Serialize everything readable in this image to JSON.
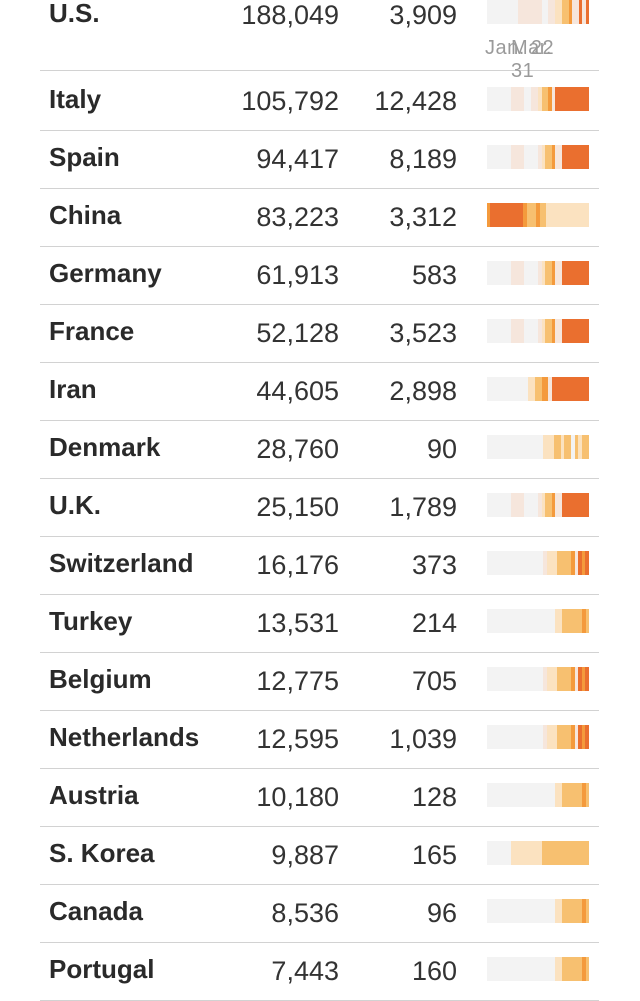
{
  "table": {
    "timeline_label_start": "Jan. 22",
    "timeline_label_end": "Mar. 31",
    "rows": [
      {
        "country": "U.S.",
        "cases": "188,049",
        "deaths": "3,909",
        "trend": "late"
      },
      {
        "country": "Italy",
        "cases": "105,792",
        "deaths": "12,428",
        "trend": "strong"
      },
      {
        "country": "Spain",
        "cases": "94,417",
        "deaths": "8,189",
        "trend": "late-mid"
      },
      {
        "country": "China",
        "cases": "83,223",
        "deaths": "3,312",
        "trend": "early"
      },
      {
        "country": "Germany",
        "cases": "61,913",
        "deaths": "583",
        "trend": "late-mid"
      },
      {
        "country": "France",
        "cases": "52,128",
        "deaths": "3,523",
        "trend": "late-mid"
      },
      {
        "country": "Iran",
        "cases": "44,605",
        "deaths": "2,898",
        "trend": "mid"
      },
      {
        "country": "Denmark",
        "cases": "28,760",
        "deaths": "90",
        "trend": "low"
      },
      {
        "country": "U.K.",
        "cases": "25,150",
        "deaths": "1,789",
        "trend": "late-mid"
      },
      {
        "country": "Switzerland",
        "cases": "16,176",
        "deaths": "373",
        "trend": "late-low"
      },
      {
        "country": "Turkey",
        "cases": "13,531",
        "deaths": "214",
        "trend": "very-late"
      },
      {
        "country": "Belgium",
        "cases": "12,775",
        "deaths": "705",
        "trend": "late-low"
      },
      {
        "country": "Netherlands",
        "cases": "12,595",
        "deaths": "1,039",
        "trend": "late-low"
      },
      {
        "country": "Austria",
        "cases": "10,180",
        "deaths": "128",
        "trend": "very-late"
      },
      {
        "country": "S. Korea",
        "cases": "9,887",
        "deaths": "165",
        "trend": "korea"
      },
      {
        "country": "Canada",
        "cases": "8,536",
        "deaths": "96",
        "trend": "very-late"
      },
      {
        "country": "Portugal",
        "cases": "7,443",
        "deaths": "160",
        "trend": "very-late"
      }
    ]
  },
  "colors": {
    "none": "#f3f3f3",
    "pale": "#f6e6dc",
    "light": "#fbe2c0",
    "mid": "#f7c070",
    "strong": "#f49a3c",
    "peak": "#ea6f2f"
  }
}
